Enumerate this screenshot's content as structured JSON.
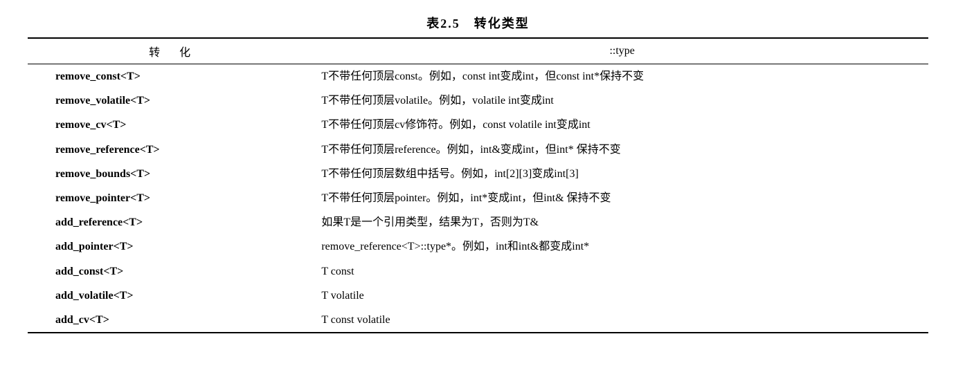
{
  "caption": "表2.5　转化类型",
  "header": {
    "left": "转　化",
    "right": "::type"
  },
  "rows": [
    {
      "left": "remove_const<T>",
      "right": "T不带任何顶层const。例如，const int变成int，但const int*保持不变"
    },
    {
      "left": "remove_volatile<T>",
      "right": "T不带任何顶层volatile。例如，volatile int变成int"
    },
    {
      "left": "remove_cv<T>",
      "right": "T不带任何顶层cv修饰符。例如，const volatile int变成int"
    },
    {
      "left": "remove_reference<T>",
      "right": "T不带任何顶层reference。例如，int&变成int，但int* 保持不变"
    },
    {
      "left": "remove_bounds<T>",
      "right": "T不带任何顶层数组中括号。例如，int[2][3]变成int[3]"
    },
    {
      "left": "remove_pointer<T>",
      "right": "T不带任何顶层pointer。例如，int*变成int，但int& 保持不变"
    },
    {
      "left": "add_reference<T>",
      "right": "如果T是一个引用类型，结果为T，否则为T&"
    },
    {
      "left": "add_pointer<T>",
      "right": "remove_reference<T>::type*。例如，int和int&都变成int*"
    },
    {
      "left": "add_const<T>",
      "right": "T const"
    },
    {
      "left": "add_volatile<T>",
      "right": "T volatile"
    },
    {
      "left": "add_cv<T>",
      "right": "T const volatile"
    }
  ],
  "style": {
    "background_color": "#ffffff",
    "text_color": "#000000",
    "border_color": "#000000",
    "caption_fontsize": 18,
    "cell_fontsize": 16,
    "row_line_height": 1.7,
    "left_col_width_pct": 32,
    "font_body": "SimSun",
    "font_code": "Times New Roman"
  }
}
